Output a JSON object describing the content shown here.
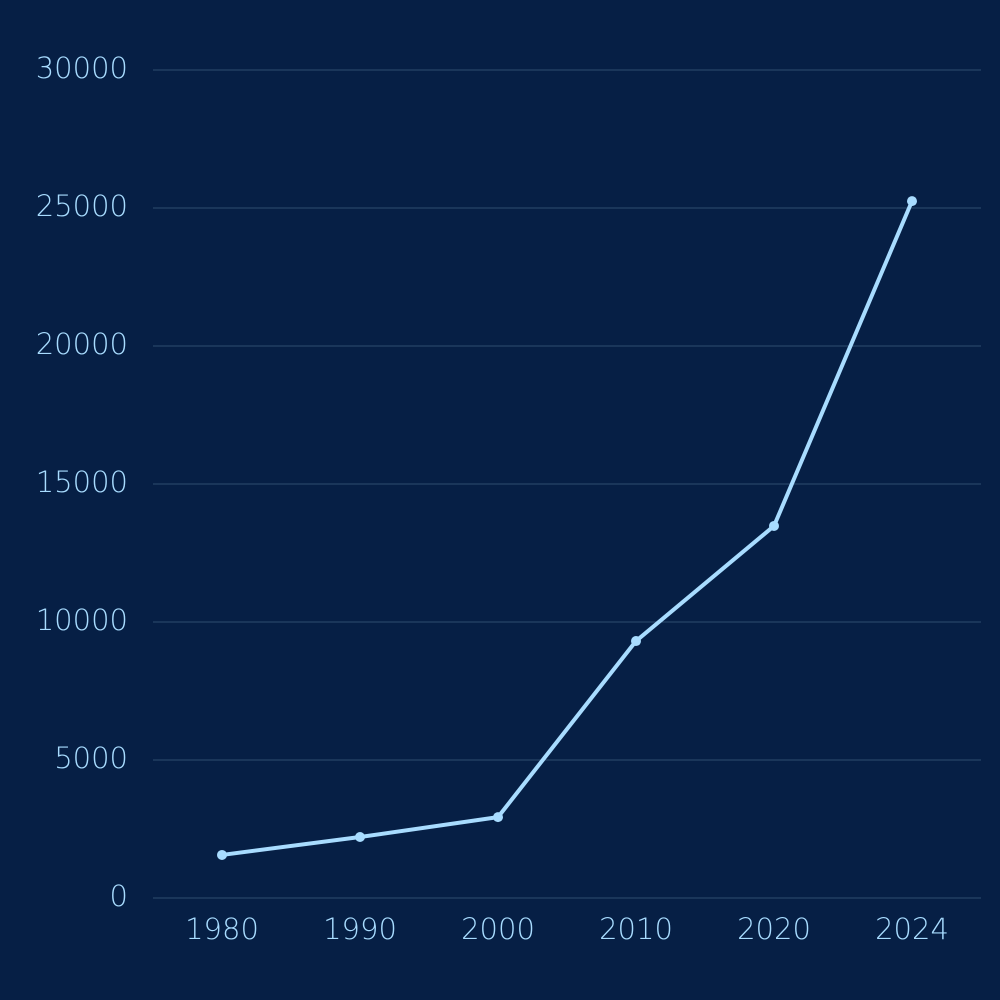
{
  "chart_data": {
    "type": "line",
    "categories": [
      "1980",
      "1990",
      "2000",
      "2010",
      "2020",
      "2024"
    ],
    "values": [
      1560,
      2210,
      2930,
      9310,
      13480,
      25250
    ],
    "color": "#a8dcff",
    "ylim": [
      0,
      30000
    ],
    "yticks": [
      0,
      5000,
      10000,
      15000,
      20000,
      25000,
      30000
    ],
    "grid": true
  }
}
